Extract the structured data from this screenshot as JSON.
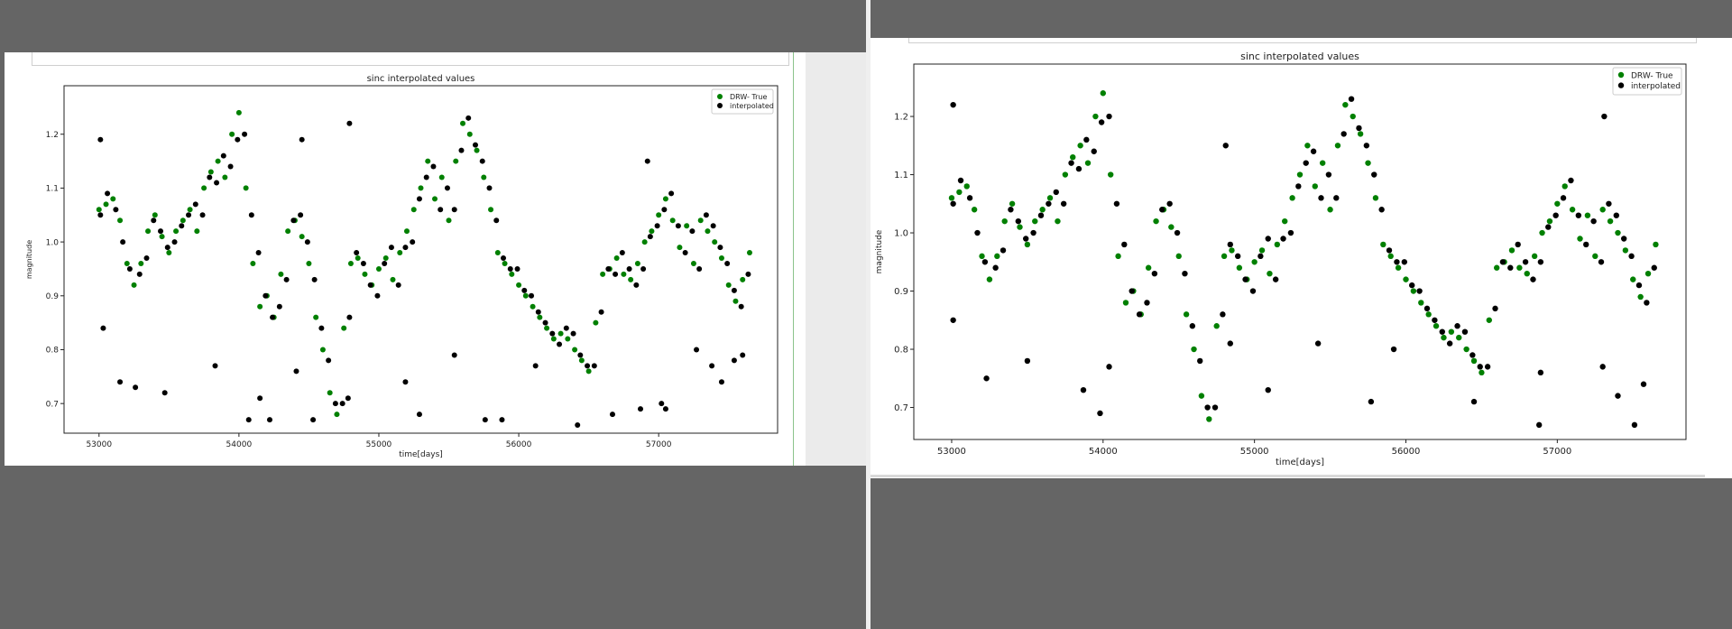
{
  "panels": [
    {
      "id": "left",
      "chart_data": {
        "type": "scatter",
        "title": "sinc interpolated values",
        "xlabel": "time[days]",
        "ylabel": "magnitude",
        "xlim": [
          52750,
          57850
        ],
        "ylim": [
          0.645,
          1.29
        ],
        "xticks": [
          53000,
          54000,
          55000,
          56000,
          57000
        ],
        "xtick_labels": [
          "53000",
          "54000",
          "55000",
          "56000",
          "57000"
        ],
        "yticks": [
          0.7,
          0.8,
          0.9,
          1.0,
          1.1,
          1.2
        ],
        "ytick_labels": [
          "0.7",
          "0.8",
          "0.9",
          "1.0",
          "1.1",
          "1.2"
        ],
        "grid": false,
        "legend": "top-right",
        "series": [
          {
            "name": "DRW- True",
            "color": "#008000",
            "x": [
              53000,
              53050,
              53100,
              53150,
              53200,
              53250,
              53300,
              53350,
              53400,
              53450,
              53500,
              53550,
              53600,
              53650,
              53700,
              53750,
              53800,
              53850,
              53900,
              53950,
              54000,
              54050,
              54100,
              54150,
              54200,
              54250,
              54300,
              54350,
              54400,
              54450,
              54500,
              54550,
              54600,
              54650,
              54700,
              54750,
              54800,
              54850,
              54900,
              54950,
              55000,
              55050,
              55100,
              55150,
              55200,
              55250,
              55300,
              55350,
              55400,
              55450,
              55500,
              55550,
              55600,
              55650,
              55700,
              55750,
              55800,
              55850,
              55900,
              55950,
              56000,
              56050,
              56100,
              56150,
              56200,
              56250,
              56300,
              56350,
              56400,
              56450,
              56500,
              56550,
              56600,
              56650,
              56700,
              56750,
              56800,
              56850,
              56900,
              56950,
              57000,
              57050,
              57100,
              57150,
              57200,
              57250,
              57300,
              57350,
              57400,
              57450,
              57500,
              57550,
              57600,
              57650
            ],
            "y": [
              1.06,
              1.07,
              1.08,
              1.04,
              0.96,
              0.92,
              0.96,
              1.02,
              1.05,
              1.01,
              0.98,
              1.02,
              1.04,
              1.06,
              1.02,
              1.1,
              1.13,
              1.15,
              1.12,
              1.2,
              1.24,
              1.1,
              0.96,
              0.88,
              0.9,
              0.86,
              0.94,
              1.02,
              1.04,
              1.01,
              0.96,
              0.86,
              0.8,
              0.72,
              0.68,
              0.84,
              0.96,
              0.97,
              0.94,
              0.92,
              0.95,
              0.97,
              0.93,
              0.98,
              1.02,
              1.06,
              1.1,
              1.15,
              1.08,
              1.12,
              1.04,
              1.15,
              1.22,
              1.2,
              1.17,
              1.12,
              1.06,
              0.98,
              0.96,
              0.94,
              0.92,
              0.9,
              0.88,
              0.86,
              0.84,
              0.82,
              0.83,
              0.82,
              0.8,
              0.78,
              0.76,
              0.85,
              0.94,
              0.95,
              0.97,
              0.94,
              0.93,
              0.96,
              1.0,
              1.02,
              1.05,
              1.08,
              1.04,
              0.99,
              1.03,
              0.96,
              1.04,
              1.02,
              1.0,
              0.97,
              0.92,
              0.89,
              0.93,
              0.98
            ]
          },
          {
            "name": "interpolated",
            "color": "#000000",
            "x": [
              53010,
              53060,
              53120,
              53170,
              53220,
              53290,
              53340,
              53390,
              53440,
              53490,
              53540,
              53590,
              53640,
              53690,
              53740,
              53790,
              53840,
              53890,
              53940,
              53990,
              54040,
              54090,
              54140,
              54190,
              54240,
              54290,
              54340,
              54390,
              54440,
              54490,
              54540,
              54590,
              54640,
              54690,
              54740,
              54790,
              54840,
              54890,
              54940,
              54990,
              55040,
              55090,
              55140,
              55190,
              55240,
              55290,
              55340,
              55390,
              55440,
              55490,
              55540,
              55590,
              55640,
              55690,
              55740,
              55790,
              55840,
              55890,
              55940,
              55990,
              56040,
              56090,
              56140,
              56190,
              56240,
              56290,
              56340,
              56390,
              56440,
              56490,
              56540,
              56590,
              56640,
              56690,
              56740,
              56790,
              56840,
              56890,
              56940,
              56990,
              57040,
              57090,
              57140,
              57190,
              57240,
              57290,
              57340,
              57390,
              57440,
              57490,
              57540,
              57590,
              57640,
              53030,
              53150,
              53260,
              53470,
              53830,
              54070,
              54150,
              54220,
              54410,
              54530,
              54780,
              55190,
              55290,
              55540,
              55760,
              55880,
              56120,
              56420,
              56670,
              56870,
              57020,
              57050,
              57270,
              57380,
              57450,
              57540,
              57600,
              53010,
              54450,
              54790,
              56920
            ],
            "y": [
              1.05,
              1.09,
              1.06,
              1.0,
              0.95,
              0.94,
              0.97,
              1.04,
              1.02,
              0.99,
              1.0,
              1.03,
              1.05,
              1.07,
              1.05,
              1.12,
              1.11,
              1.16,
              1.14,
              1.19,
              1.2,
              1.05,
              0.98,
              0.9,
              0.86,
              0.88,
              0.93,
              1.04,
              1.05,
              1.0,
              0.93,
              0.84,
              0.78,
              0.7,
              0.7,
              0.86,
              0.98,
              0.96,
              0.92,
              0.9,
              0.96,
              0.99,
              0.92,
              0.99,
              1.0,
              1.08,
              1.12,
              1.14,
              1.06,
              1.1,
              1.06,
              1.17,
              1.23,
              1.18,
              1.15,
              1.1,
              1.04,
              0.97,
              0.95,
              0.95,
              0.91,
              0.9,
              0.87,
              0.85,
              0.83,
              0.81,
              0.84,
              0.83,
              0.79,
              0.77,
              0.77,
              0.87,
              0.95,
              0.94,
              0.98,
              0.95,
              0.92,
              0.95,
              1.01,
              1.03,
              1.06,
              1.09,
              1.03,
              0.98,
              1.02,
              0.95,
              1.05,
              1.03,
              0.99,
              0.96,
              0.91,
              0.88,
              0.94,
              0.84,
              0.74,
              0.73,
              0.72,
              0.77,
              0.67,
              0.71,
              0.67,
              0.76,
              0.67,
              0.71,
              0.74,
              0.68,
              0.79,
              0.67,
              0.67,
              0.77,
              0.66,
              0.68,
              0.69,
              0.7,
              0.69,
              0.8,
              0.77,
              0.74,
              0.78,
              0.79,
              1.19,
              1.19,
              1.22,
              1.15
            ]
          }
        ]
      }
    },
    {
      "id": "right",
      "chart_data": {
        "type": "scatter",
        "title": "sinc interpolated values",
        "xlabel": "time[days]",
        "ylabel": "magnitude",
        "xlim": [
          52750,
          57850
        ],
        "ylim": [
          0.645,
          1.29
        ],
        "xticks": [
          53000,
          54000,
          55000,
          56000,
          57000
        ],
        "xtick_labels": [
          "53000",
          "54000",
          "55000",
          "56000",
          "57000"
        ],
        "yticks": [
          0.7,
          0.8,
          0.9,
          1.0,
          1.1,
          1.2
        ],
        "ytick_labels": [
          "0.7",
          "0.8",
          "0.9",
          "1.0",
          "1.1",
          "1.2"
        ],
        "grid": false,
        "legend": "top-right",
        "series": [
          {
            "name": "DRW- True",
            "color": "#008000",
            "x": [
              53000,
              53050,
              53100,
              53150,
              53200,
              53250,
              53300,
              53350,
              53400,
              53450,
              53500,
              53550,
              53600,
              53650,
              53700,
              53750,
              53800,
              53850,
              53900,
              53950,
              54000,
              54050,
              54100,
              54150,
              54200,
              54250,
              54300,
              54350,
              54400,
              54450,
              54500,
              54550,
              54600,
              54650,
              54700,
              54750,
              54800,
              54850,
              54900,
              54950,
              55000,
              55050,
              55100,
              55150,
              55200,
              55250,
              55300,
              55350,
              55400,
              55450,
              55500,
              55550,
              55600,
              55650,
              55700,
              55750,
              55800,
              55850,
              55900,
              55950,
              56000,
              56050,
              56100,
              56150,
              56200,
              56250,
              56300,
              56350,
              56400,
              56450,
              56500,
              56550,
              56600,
              56650,
              56700,
              56750,
              56800,
              56850,
              56900,
              56950,
              57000,
              57050,
              57100,
              57150,
              57200,
              57250,
              57300,
              57350,
              57400,
              57450,
              57500,
              57550,
              57600,
              57650
            ],
            "y": [
              1.06,
              1.07,
              1.08,
              1.04,
              0.96,
              0.92,
              0.96,
              1.02,
              1.05,
              1.01,
              0.98,
              1.02,
              1.04,
              1.06,
              1.02,
              1.1,
              1.13,
              1.15,
              1.12,
              1.2,
              1.24,
              1.1,
              0.96,
              0.88,
              0.9,
              0.86,
              0.94,
              1.02,
              1.04,
              1.01,
              0.96,
              0.86,
              0.8,
              0.72,
              0.68,
              0.84,
              0.96,
              0.97,
              0.94,
              0.92,
              0.95,
              0.97,
              0.93,
              0.98,
              1.02,
              1.06,
              1.1,
              1.15,
              1.08,
              1.12,
              1.04,
              1.15,
              1.22,
              1.2,
              1.17,
              1.12,
              1.06,
              0.98,
              0.96,
              0.94,
              0.92,
              0.9,
              0.88,
              0.86,
              0.84,
              0.82,
              0.83,
              0.82,
              0.8,
              0.78,
              0.76,
              0.85,
              0.94,
              0.95,
              0.97,
              0.94,
              0.93,
              0.96,
              1.0,
              1.02,
              1.05,
              1.08,
              1.04,
              0.99,
              1.03,
              0.96,
              1.04,
              1.02,
              1.0,
              0.97,
              0.92,
              0.89,
              0.93,
              0.98
            ]
          },
          {
            "name": "interpolated",
            "color": "#000000",
            "x": [
              53010,
              53060,
              53120,
              53170,
              53220,
              53290,
              53340,
              53390,
              53440,
              53490,
              53540,
              53590,
              53640,
              53690,
              53740,
              53790,
              53840,
              53890,
              53940,
              53990,
              54040,
              54090,
              54140,
              54190,
              54240,
              54290,
              54340,
              54390,
              54440,
              54490,
              54540,
              54590,
              54640,
              54690,
              54740,
              54790,
              54840,
              54890,
              54940,
              54990,
              55040,
              55090,
              55140,
              55190,
              55240,
              55290,
              55340,
              55390,
              55440,
              55490,
              55540,
              55590,
              55640,
              55690,
              55740,
              55790,
              55840,
              55890,
              55940,
              55990,
              56040,
              56090,
              56140,
              56190,
              56240,
              56290,
              56340,
              56390,
              56440,
              56490,
              56540,
              56590,
              56640,
              56690,
              56740,
              56790,
              56840,
              56890,
              56940,
              56990,
              57040,
              57090,
              57140,
              57190,
              57240,
              57290,
              57340,
              57390,
              57440,
              57490,
              57540,
              57590,
              57640,
              53010,
              53230,
              53500,
              53870,
              53980,
              54040,
              54840,
              55090,
              55420,
              55770,
              55920,
              56450,
              56880,
              56890,
              57300,
              57400,
              57510,
              57570,
              53010,
              54810,
              57310
            ],
            "y": [
              1.05,
              1.09,
              1.06,
              1.0,
              0.95,
              0.94,
              0.97,
              1.04,
              1.02,
              0.99,
              1.0,
              1.03,
              1.05,
              1.07,
              1.05,
              1.12,
              1.11,
              1.16,
              1.14,
              1.19,
              1.2,
              1.05,
              0.98,
              0.9,
              0.86,
              0.88,
              0.93,
              1.04,
              1.05,
              1.0,
              0.93,
              0.84,
              0.78,
              0.7,
              0.7,
              0.86,
              0.98,
              0.96,
              0.92,
              0.9,
              0.96,
              0.99,
              0.92,
              0.99,
              1.0,
              1.08,
              1.12,
              1.14,
              1.06,
              1.1,
              1.06,
              1.17,
              1.23,
              1.18,
              1.15,
              1.1,
              1.04,
              0.97,
              0.95,
              0.95,
              0.91,
              0.9,
              0.87,
              0.85,
              0.83,
              0.81,
              0.84,
              0.83,
              0.79,
              0.77,
              0.77,
              0.87,
              0.95,
              0.94,
              0.98,
              0.95,
              0.92,
              0.95,
              1.01,
              1.03,
              1.06,
              1.09,
              1.03,
              0.98,
              1.02,
              0.95,
              1.05,
              1.03,
              0.99,
              0.96,
              0.91,
              0.88,
              0.94,
              0.85,
              0.75,
              0.78,
              0.73,
              0.69,
              0.77,
              0.81,
              0.73,
              0.81,
              0.71,
              0.8,
              0.71,
              0.67,
              0.76,
              0.77,
              0.72,
              0.67,
              0.74,
              1.22,
              1.15,
              1.2
            ]
          }
        ]
      }
    }
  ]
}
